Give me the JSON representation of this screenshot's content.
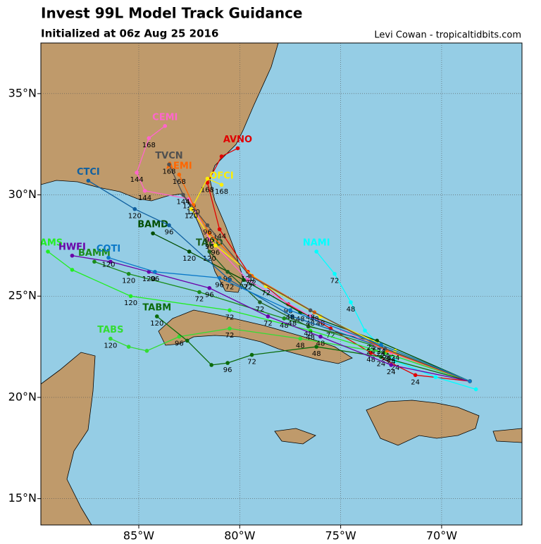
{
  "chart_data": {
    "type": "track-map",
    "title": "Invest 99L Model Track Guidance",
    "subtitle": "Initialized at 06z Aug 25 2016",
    "credit": "Levi Cowan - tropicaltidbits.com",
    "xlim": [
      -89.85,
      -66.02
    ],
    "ylim": [
      13.7,
      37.5
    ],
    "xticks": [
      {
        "value": -85,
        "label": "85°W"
      },
      {
        "value": -80,
        "label": "80°W"
      },
      {
        "value": -75,
        "label": "75°W"
      },
      {
        "value": -70,
        "label": "70°W"
      }
    ],
    "yticks": [
      {
        "value": 15,
        "label": "15°N"
      },
      {
        "value": 20,
        "label": "20°N"
      },
      {
        "value": 25,
        "label": "25°N"
      },
      {
        "value": 30,
        "label": "30°N"
      },
      {
        "value": 35,
        "label": "35°N"
      }
    ],
    "grid": true,
    "series": [
      {
        "name": "AVNO",
        "color": "#e00000",
        "x": [
          -68.6,
          -71.3,
          -73.5,
          -75.5,
          -77.6,
          -79.6,
          -81,
          -81.6,
          -80.9,
          -80.1
        ],
        "y": [
          20.8,
          21.1,
          22.2,
          23.4,
          24.6,
          26.2,
          28.3,
          30.6,
          31.9,
          32.3
        ],
        "labels": [
          null,
          "24",
          "48",
          "72",
          "96",
          "120",
          "144",
          "168",
          null,
          null
        ]
      },
      {
        "name": "NAMI",
        "color": "#00ffff",
        "x": [
          -68.3,
          -70.3,
          -72.3,
          -73.8,
          -74.5,
          -75.3,
          -76.2
        ],
        "y": [
          20.4,
          21,
          21.8,
          23.3,
          24.7,
          26.1,
          27.2
        ],
        "labels": [
          null,
          null,
          "24",
          null,
          "48",
          "72",
          null
        ]
      },
      {
        "name": "BAMS",
        "color": "#22ee22",
        "x": [
          -68.6,
          -72.5,
          -76.5,
          -80.5,
          -85.4,
          -88.3,
          -89.5
        ],
        "y": [
          20.8,
          22.1,
          23.3,
          24.3,
          25,
          26.3,
          27.2
        ],
        "labels": [
          null,
          "24",
          "48",
          "72",
          "120",
          null,
          null
        ]
      },
      {
        "name": "BAMD",
        "color": "#004d00",
        "x": [
          -68.6,
          -73.2,
          -77,
          -79.8,
          -82.5,
          -84.3
        ],
        "y": [
          20.8,
          22.8,
          24.2,
          25.8,
          27.2,
          28.1
        ],
        "labels": [
          null,
          "24",
          "48",
          "72",
          "120",
          null
        ]
      },
      {
        "name": "BAMM",
        "color": "#1a8c1a",
        "x": [
          -68.6,
          -73.5,
          -77.8,
          -82,
          -85.5,
          -87.2
        ],
        "y": [
          20.8,
          22.6,
          23.9,
          25.2,
          26.1,
          26.7
        ],
        "labels": [
          null,
          "24",
          "48",
          "72",
          "120",
          null
        ]
      },
      {
        "name": "TABS",
        "color": "#33dd33",
        "x": [
          -68.6,
          -72.8,
          -77,
          -80.5,
          -83,
          -84.6,
          -85.5,
          -86.4
        ],
        "y": [
          20.8,
          22.2,
          22.9,
          23.4,
          23,
          22.3,
          22.5,
          22.9
        ],
        "labels": [
          null,
          "24",
          "48",
          "72",
          "96",
          null,
          null,
          "120"
        ]
      },
      {
        "name": "TABM",
        "color": "#0b6b0b",
        "x": [
          -68.6,
          -73,
          -76.2,
          -79.4,
          -80.6,
          -81.4,
          -82.6,
          -84.1
        ],
        "y": [
          20.8,
          22,
          22.5,
          22.1,
          21.7,
          21.6,
          22.8,
          24
        ],
        "labels": [
          null,
          "24",
          "48",
          "72",
          "96",
          null,
          null,
          "120"
        ]
      },
      {
        "name": "TABD",
        "color": "#1f5f1f",
        "x": [
          -68.6,
          -73.5,
          -76.6,
          -79,
          -80.6,
          -81.5
        ],
        "y": [
          20.8,
          22.8,
          23.5,
          24.7,
          26.2,
          27.2
        ],
        "labels": [
          null,
          "24",
          "48",
          "72",
          "96",
          "120"
        ]
      },
      {
        "name": "HWFI",
        "color": "#6a00a8",
        "x": [
          -68.6,
          -72.5,
          -76,
          -78.6,
          -81.5,
          -84.5,
          -86.4,
          -88.3
        ],
        "y": [
          20.8,
          21.6,
          23,
          24,
          25.4,
          26.2,
          26.7,
          27
        ],
        "labels": [
          null,
          "24",
          "48",
          "72",
          "96",
          "120",
          null,
          null
        ]
      },
      {
        "name": "CEMI",
        "color": "#ff66cc",
        "x": [
          -68.6,
          -72.5,
          -76.5,
          -79.6,
          -81.5,
          -82.5,
          -84.7,
          -85.1,
          -84.5,
          -83.7
        ],
        "y": [
          20.8,
          22.2,
          24,
          25.8,
          27.8,
          29.8,
          30.2,
          31.1,
          32.8,
          33.4
        ],
        "labels": [
          null,
          "24",
          "48",
          "72",
          "96",
          "120",
          "144",
          "144",
          "168",
          null
        ]
      },
      {
        "name": "CTCI",
        "color": "#1060a0",
        "x": [
          -68.6,
          -73,
          -77.4,
          -80.5,
          -83.5,
          -85.2,
          -87.5
        ],
        "y": [
          20.8,
          22.5,
          24,
          25.8,
          28.5,
          29.3,
          30.7
        ],
        "labels": [
          null,
          "24",
          "48",
          "72",
          "96",
          "120",
          null
        ]
      },
      {
        "name": "OFCI",
        "color": "#ffee00",
        "x": [
          -68.6,
          -72.3,
          -76,
          -78.7,
          -81.2,
          -82.4,
          -81.6,
          -80.9
        ],
        "y": [
          20.8,
          22.3,
          24,
          25.5,
          27.5,
          29.3,
          30.8,
          30.5
        ],
        "labels": [
          null,
          "24",
          "48",
          "72",
          "96",
          "120",
          null,
          "168"
        ]
      },
      {
        "name": "AEMI",
        "color": "#ff6600",
        "x": [
          -68.6,
          -72.7,
          -76.3,
          -79.4,
          -81.5,
          -82.3,
          -83
        ],
        "y": [
          20.8,
          22.3,
          24.2,
          26,
          28.1,
          29.5,
          31
        ],
        "labels": [
          null,
          "24",
          "48",
          "72",
          "96",
          "120",
          "168"
        ]
      },
      {
        "name": "TVCN",
        "color": "#505050",
        "x": [
          -68.6,
          -72.8,
          -76.5,
          -79.5,
          -81.6,
          -82.8,
          -83.5
        ],
        "y": [
          20.8,
          22.4,
          24.3,
          26,
          28.5,
          30,
          31.5
        ],
        "labels": [
          null,
          "24",
          "48",
          "72",
          "96",
          "144",
          "168"
        ]
      },
      {
        "name": "COTI",
        "color": "#0a78c8",
        "x": [
          -68.6,
          -73,
          -77.5,
          -81,
          -84.2,
          -86.5
        ],
        "y": [
          20.8,
          22.6,
          24.3,
          25.9,
          26.2,
          26.9
        ],
        "labels": [
          null,
          "24",
          "48",
          "96",
          "96",
          "120"
        ]
      }
    ]
  }
}
